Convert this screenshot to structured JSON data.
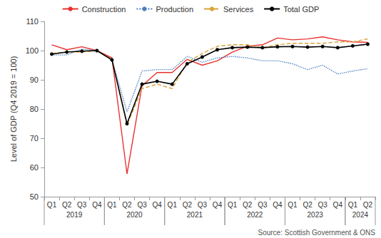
{
  "chart_data": {
    "type": "line",
    "y_label": "Level of GDP (Q4 2019 = 100)",
    "source": "Source: Scottish Government & ONS",
    "categories": [
      "Q1",
      "Q2",
      "Q3",
      "Q4",
      "Q1",
      "Q2",
      "Q3",
      "Q4",
      "Q1",
      "Q2",
      "Q3",
      "Q4",
      "Q1",
      "Q2",
      "Q3",
      "Q4",
      "Q1",
      "Q2",
      "Q3",
      "Q4",
      "Q1",
      "Q2"
    ],
    "category_groups": [
      {
        "label": "2019",
        "count": 4
      },
      {
        "label": "2020",
        "count": 4
      },
      {
        "label": "2021",
        "count": 4
      },
      {
        "label": "2022",
        "count": 4
      },
      {
        "label": "2023",
        "count": 4
      },
      {
        "label": "2024",
        "count": 2
      }
    ],
    "series": [
      {
        "name": "Construction",
        "color": "#e8312f",
        "line_style": "solid",
        "marker": "none",
        "values": [
          102,
          100.3,
          101.3,
          100,
          97.5,
          57.8,
          88,
          92.5,
          92.5,
          97,
          95,
          96.5,
          99.5,
          101.5,
          102,
          104.3,
          103.7,
          104,
          104.7,
          103.7,
          103,
          102.8
        ]
      },
      {
        "name": "Production",
        "color": "#4a7fc1",
        "line_style": "dotted",
        "marker": "none",
        "values": [
          98.5,
          98.5,
          100.5,
          100,
          97,
          79,
          93,
          93.5,
          93.5,
          98,
          96,
          97.5,
          98,
          97.5,
          96.5,
          96.5,
          95.5,
          93.5,
          95,
          92,
          93,
          93.8
        ]
      },
      {
        "name": "Services",
        "color": "#d9a43a",
        "line_style": "dashed",
        "marker": "none",
        "values": [
          99,
          99.5,
          99.5,
          100,
          97,
          74.5,
          87,
          88.5,
          87,
          96,
          99,
          101.5,
          102,
          102,
          101,
          102,
          102.5,
          102.5,
          102.5,
          103,
          103,
          104
        ]
      },
      {
        "name": "Total GDP",
        "color": "#000000",
        "line_style": "solid",
        "marker": "circle",
        "values": [
          98.8,
          99.5,
          99.8,
          100,
          96.8,
          75,
          88.5,
          89.5,
          88.5,
          95.5,
          97.8,
          100.3,
          101,
          101.2,
          101,
          101.3,
          101.4,
          101.2,
          101.4,
          101,
          101.6,
          102.2
        ]
      }
    ],
    "ylim": [
      50,
      110
    ],
    "yticks": [
      50,
      60,
      70,
      80,
      90,
      100,
      110
    ],
    "grid": false,
    "legend": "top"
  }
}
